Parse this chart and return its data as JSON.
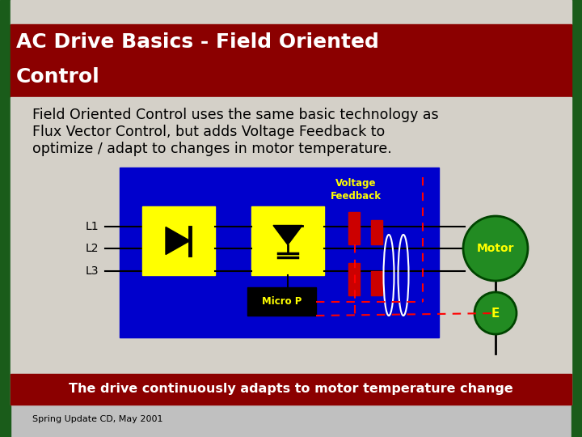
{
  "bg_color": "#c0c0c0",
  "title_bg_color": "#8B0000",
  "title_text_line1": "AC Drive Basics - Field Oriented",
  "title_text_line2": "Control",
  "title_text_color": "#ffffff",
  "title_font_size": 18,
  "body_bg_color": "#d4d0c8",
  "body_text": "Field Oriented Control uses the same basic technology as\nFlux Vector Control, but adds Voltage Feedback to\noptimize / adapt to changes in motor temperature.",
  "body_text_color": "#000000",
  "body_font_size": 12.5,
  "diagram_bg_color": "#0000CC",
  "rect_yellow": "#FFFF00",
  "rect_black": "#000000",
  "motor_color": "#228B22",
  "motor_border": "#004400",
  "encoder_color": "#228B22",
  "encoder_border": "#004400",
  "dashed_color": "#FF0000",
  "voltage_feedback_color": "#FFFF00",
  "bottom_bar_bg": "#8B0000",
  "bottom_bar_text": "The drive continuously adapts to motor temperature change",
  "bottom_bar_text_color": "#ffffff",
  "footer_text": "Spring Update CD, May 2001",
  "footer_color": "#000000",
  "left_bar_color": "#1a5c1a",
  "right_bar_color": "#1a5c1a",
  "top_strip_color": "#d4d0c8",
  "coil_color": "#ffffff",
  "line_color": "#000000"
}
